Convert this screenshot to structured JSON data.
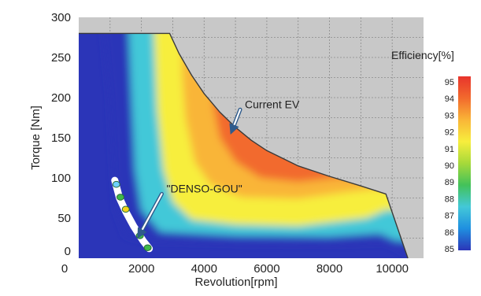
{
  "chart_data": {
    "type": "heatmap",
    "title": "",
    "xlabel": "Revolution[rpm]",
    "ylabel": "Torque [Nm]",
    "xlim": [
      0,
      11000
    ],
    "ylim": [
      0,
      300
    ],
    "x_ticks": [
      2000,
      4000,
      6000,
      8000,
      10000
    ],
    "x_tick_labels": [
      "2000",
      "4000",
      "6000",
      "8000",
      "10000"
    ],
    "x_origin_label": "0",
    "y_ticks": [
      0,
      50,
      100,
      150,
      200,
      250,
      300
    ],
    "y_tick_labels": [
      "0",
      "50",
      "100",
      "150",
      "200",
      "250",
      "300"
    ],
    "grid": true,
    "colorbar": {
      "label": "Efficiency[%]",
      "min": 85,
      "max": 95,
      "ticks": [
        "95",
        "94",
        "93",
        "92",
        "91",
        "90",
        "89",
        "88",
        "87",
        "86",
        "85"
      ],
      "colors": [
        "#2b35b8",
        "#1f8fe0",
        "#43c8d8",
        "#43c25a",
        "#a6d93a",
        "#f7ee3d",
        "#f9b537",
        "#f26a2d",
        "#e8342c"
      ]
    },
    "max_torque_curve": [
      [
        0,
        280
      ],
      [
        2900,
        280
      ],
      [
        3200,
        255
      ],
      [
        3600,
        228
      ],
      [
        4000,
        205
      ],
      [
        4500,
        182
      ],
      [
        5000,
        163
      ],
      [
        5500,
        147
      ],
      [
        6000,
        134
      ],
      [
        7000,
        115
      ],
      [
        8000,
        102
      ],
      [
        9000,
        90
      ],
      [
        9800,
        80
      ],
      [
        10500,
        0
      ]
    ],
    "efficiency_contours": [
      {
        "level": 85,
        "points": [
          [
            800,
            280
          ],
          [
            1000,
            200
          ],
          [
            1100,
            120
          ],
          [
            1200,
            60
          ],
          [
            1500,
            28
          ],
          [
            2200,
            22
          ],
          [
            5000,
            19
          ],
          [
            8000,
            18
          ],
          [
            9800,
            20
          ],
          [
            10200,
            12
          ],
          [
            10500,
            6
          ]
        ]
      },
      {
        "level": 88,
        "points": [
          [
            1600,
            280
          ],
          [
            1700,
            190
          ],
          [
            1800,
            110
          ],
          [
            2000,
            60
          ],
          [
            2600,
            33
          ],
          [
            5000,
            28
          ],
          [
            8000,
            27
          ],
          [
            9600,
            31
          ],
          [
            10100,
            22
          ]
        ]
      },
      {
        "level": 91,
        "points": [
          [
            2400,
            280
          ],
          [
            2500,
            185
          ],
          [
            2700,
            110
          ],
          [
            3000,
            70
          ],
          [
            3600,
            48
          ],
          [
            5000,
            42
          ],
          [
            7000,
            40
          ],
          [
            9200,
            50
          ],
          [
            9800,
            60
          ]
        ]
      },
      {
        "level": 93,
        "points": [
          [
            3300,
            228
          ],
          [
            3400,
            175
          ],
          [
            3700,
            120
          ],
          [
            4200,
            92
          ],
          [
            5200,
            76
          ],
          [
            7000,
            74
          ],
          [
            8500,
            82
          ],
          [
            9400,
            86
          ]
        ]
      },
      {
        "level": 94,
        "points": [
          [
            4300,
            188
          ],
          [
            4500,
            150
          ],
          [
            5000,
            120
          ],
          [
            5800,
            100
          ],
          [
            7000,
            95
          ],
          [
            8200,
            100
          ],
          [
            8800,
            100
          ]
        ]
      }
    ],
    "annotations": [
      {
        "text": "Current EV",
        "x": 5300,
        "y": 187,
        "arrow_to": [
          4900,
          160
        ]
      },
      {
        "text": "\"DENSO-GOU\"",
        "x": 2800,
        "y": 82,
        "arrow_to": [
          1950,
          30
        ]
      }
    ],
    "operating_points": [
      {
        "x": 1200,
        "y": 92,
        "color": "#6fd0ff"
      },
      {
        "x": 1330,
        "y": 76,
        "color": "#3fb84a"
      },
      {
        "x": 1500,
        "y": 61,
        "color": "#f2d21c"
      },
      {
        "x": 1950,
        "y": 28,
        "color": "#3fb84a"
      },
      {
        "x": 2200,
        "y": 13,
        "color": "#3fb84a"
      }
    ],
    "operating_band": [
      [
        1150,
        97
      ],
      [
        1300,
        75
      ],
      [
        1500,
        58
      ],
      [
        1750,
        40
      ],
      [
        2050,
        22
      ],
      [
        2250,
        12
      ]
    ]
  }
}
